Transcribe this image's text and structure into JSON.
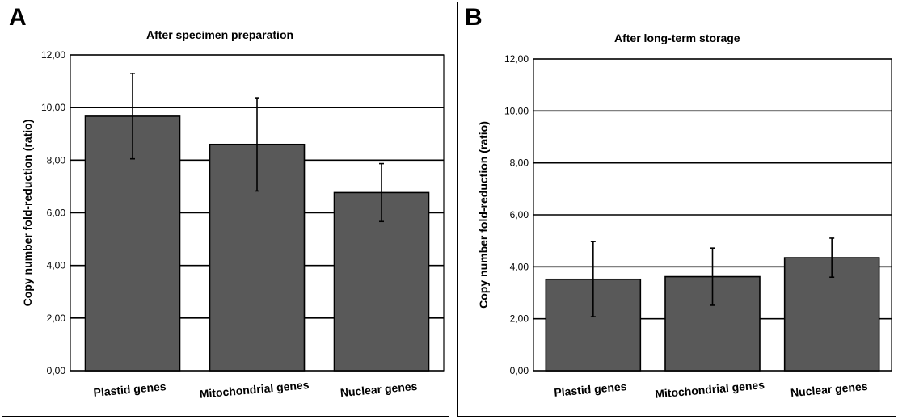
{
  "chart_data": [
    {
      "type": "bar",
      "panel_label": "A",
      "title": "After specimen preparation",
      "ylabel": "Copy number fold-reduction (ratio)",
      "xlabel": "",
      "categories": [
        "Plastid genes",
        "Mitochondrial genes",
        "Nuclear genes"
      ],
      "values": [
        9.67,
        8.6,
        6.77
      ],
      "error_low": [
        8.05,
        6.83,
        5.67
      ],
      "error_high": [
        11.3,
        10.37,
        7.87
      ],
      "ylim": [
        0,
        12
      ],
      "yticks": [
        "0,00",
        "2,00",
        "4,00",
        "6,00",
        "8,00",
        "10,00",
        "12,00"
      ],
      "grid": true,
      "bar_color": "#595959"
    },
    {
      "type": "bar",
      "panel_label": "B",
      "title": "After long-term storage",
      "ylabel": "Copy number fold-reduction (ratio)",
      "xlabel": "",
      "categories": [
        "Plastid genes",
        "Mitochondrial genes",
        "Nuclear genes"
      ],
      "values": [
        3.52,
        3.62,
        4.35
      ],
      "error_low": [
        2.08,
        2.52,
        3.6
      ],
      "error_high": [
        4.97,
        4.72,
        5.1
      ],
      "ylim": [
        0,
        12
      ],
      "yticks": [
        "0,00",
        "2,00",
        "4,00",
        "6,00",
        "8,00",
        "10,00",
        "12,00"
      ],
      "grid": true,
      "bar_color": "#595959"
    }
  ]
}
